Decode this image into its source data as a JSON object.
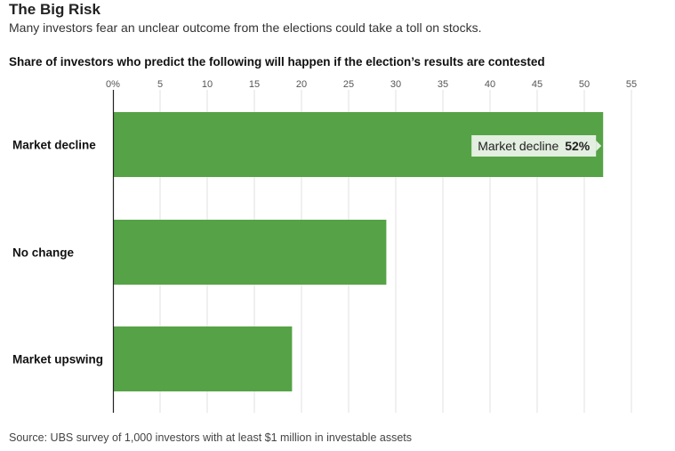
{
  "header": {
    "title": "The Big Risk",
    "subtitle": "Many investors fear an unclear outcome from the elections could take a toll on stocks."
  },
  "chart_heading": "Share of investors who predict the following will happen if the election’s results are contested",
  "source": "Source: UBS survey of 1,000 investors with at least $1 million in investable assets",
  "tooltip": {
    "category": "Market decline",
    "value_label": "52%"
  },
  "colors": {
    "bar": "#55a346",
    "grid": "#e2e2e2",
    "axis": "#222222",
    "tooltip_bg": "#e3efe0"
  },
  "chart_data": {
    "type": "bar",
    "orientation": "horizontal",
    "categories": [
      "Market decline",
      "No change",
      "Market upswing"
    ],
    "values": [
      52,
      29,
      19
    ],
    "unit": "%",
    "xlim": [
      0,
      55
    ],
    "xticks": [
      "0%",
      "5",
      "10",
      "15",
      "20",
      "25",
      "30",
      "35",
      "40",
      "45",
      "50",
      "55"
    ],
    "grid": true,
    "title": "Share of investors who predict the following will happen if the election’s results are contested"
  }
}
